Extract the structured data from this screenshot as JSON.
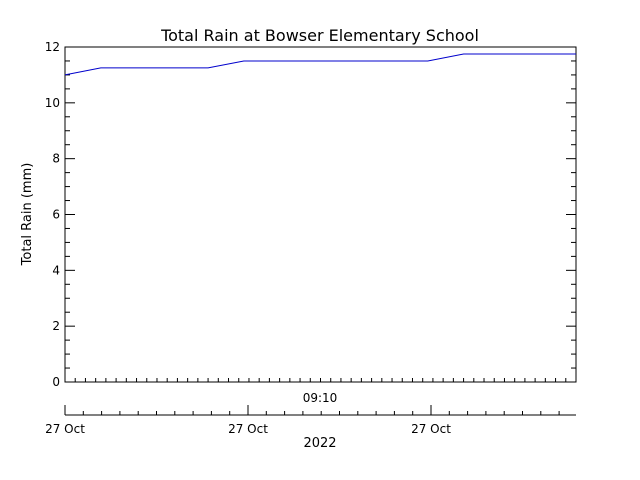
{
  "chart_data": {
    "type": "line",
    "title": "Total Rain at Bowser Elementary School",
    "ylabel": "Total Rain (mm)",
    "xlabel": "2022",
    "time_label": "09:10",
    "ylim": [
      0,
      12
    ],
    "y_ticks": [
      "0",
      "2",
      "4",
      "6",
      "8",
      "10",
      "12"
    ],
    "x_tick_labels": [
      "27 Oct",
      "27 Oct",
      "27 Oct"
    ],
    "grid": false,
    "line_color": "#0000cc",
    "series": [
      {
        "x": [
          0,
          0.07,
          0.28,
          0.35,
          0.71,
          0.78,
          1.0
        ],
        "values": [
          11.0,
          11.25,
          11.25,
          11.5,
          11.5,
          11.75,
          11.75
        ]
      }
    ]
  }
}
